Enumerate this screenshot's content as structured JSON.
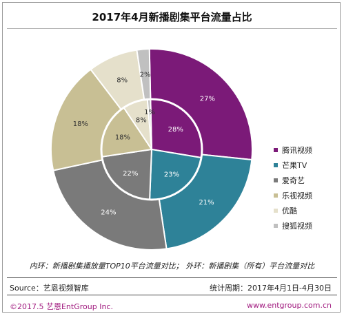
{
  "chart_data": {
    "type": "pie",
    "title": "2017年4月新播剧集平台流量占比",
    "categories": [
      "腾讯视频",
      "芒果TV",
      "爱奇艺",
      "乐视视频",
      "优酷",
      "搜狐视频"
    ],
    "colors": [
      "#7b1a78",
      "#2e8298",
      "#7a7a7a",
      "#c8bf94",
      "#e5e0cb",
      "#c0c0c0"
    ],
    "series": [
      {
        "ring": "outer",
        "values": [
          27,
          21,
          24,
          18,
          8,
          2
        ],
        "labels": [
          "27%",
          "21%",
          "24%",
          "18%",
          "8%",
          "2%"
        ]
      },
      {
        "ring": "inner",
        "values": [
          28,
          23,
          22,
          18,
          8,
          1
        ],
        "labels": [
          "28%",
          "23%",
          "22%",
          "18%",
          "8%",
          "1%"
        ]
      }
    ],
    "legend_position": "right"
  },
  "note": "内环：新播剧集播放量TOP10平台流量对比；  外环：新播剧集（所有）平台流量对比",
  "footer": {
    "source": "Source：艺恩视频智库",
    "period": "统计周期：2017年4月1日-4月30日",
    "copyright": "©2017.5  艺恩EntGroup Inc.",
    "website": "www.entgroup.com.cn"
  }
}
